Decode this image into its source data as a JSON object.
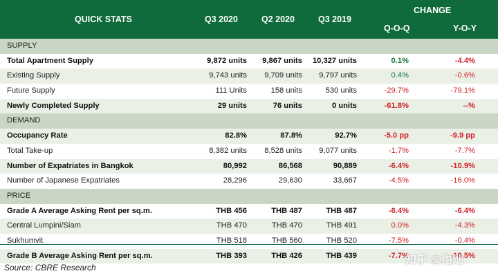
{
  "header": {
    "title": "QUICK STATS",
    "q3_2020": "Q3 2020",
    "q2_2020": "Q2 2020",
    "q3_2019": "Q3 2019",
    "change": "CHANGE",
    "qoq": "Q-O-Q",
    "yoy": "Y-O-Y"
  },
  "rows": [
    {
      "type": "section",
      "label": "SUPPLY"
    },
    {
      "type": "bold",
      "label": "Total Apartment Supply",
      "v1": "9,872 units",
      "v2": "9,867 units",
      "v3": "10,327 units",
      "qoq": "0.1%",
      "yoy": "-4.4%",
      "qs": "pos",
      "ys": "neg"
    },
    {
      "type": "normal",
      "label": "Existing Supply",
      "v1": "9,743 units",
      "v2": "9,709 units",
      "v3": "9,797 units",
      "qoq": "0.4%",
      "yoy": "-0.6%",
      "qs": "pos",
      "ys": "neg"
    },
    {
      "type": "normal",
      "label": "Future Supply",
      "v1": "111 Units",
      "v2": "158 units",
      "v3": "530 units",
      "qoq": "-29.7%",
      "yoy": "-79.1%",
      "qs": "neg",
      "ys": "neg"
    },
    {
      "type": "bold",
      "label": "Newly Completed Supply",
      "v1": "29 units",
      "v2": "76 units",
      "v3": "0 units",
      "qoq": "-61.8%",
      "yoy": "--%",
      "qs": "neg",
      "ys": "neg"
    },
    {
      "type": "section",
      "label": "DEMAND"
    },
    {
      "type": "bold",
      "label": "Occupancy Rate",
      "v1": "82.8%",
      "v2": "87.8%",
      "v3": "92.7%",
      "qoq": "-5.0 pp",
      "yoy": "-9.9 pp",
      "qs": "neg",
      "ys": "neg"
    },
    {
      "type": "normal",
      "label": "Total Take-up",
      "v1": "8,382 units",
      "v2": "8,528 units",
      "v3": "9,077 units",
      "qoq": "-1.7%",
      "yoy": "-7.7%",
      "qs": "neg",
      "ys": "neg"
    },
    {
      "type": "bold",
      "label": "Number of Expatriates in Bangkok",
      "v1": "80,992",
      "v2": "86,568",
      "v3": "90,889",
      "qoq": "-6.4%",
      "yoy": "-10.9%",
      "qs": "neg",
      "ys": "neg"
    },
    {
      "type": "normal",
      "label": "Number of Japanese Expatriates",
      "v1": "28,296",
      "v2": "29,630",
      "v3": "33,667",
      "qoq": "-4.5%",
      "yoy": "-16.0%",
      "qs": "neg",
      "ys": "neg"
    },
    {
      "type": "section",
      "label": "PRICE"
    },
    {
      "type": "bold",
      "label": "Grade A Average Asking Rent per sq.m.",
      "v1": "THB 456",
      "v2": "THB 487",
      "v3": "THB 487",
      "qoq": "-6.4%",
      "yoy": "-6.4%",
      "qs": "neg",
      "ys": "neg"
    },
    {
      "type": "normal",
      "label": "Central Lumpini/Siam",
      "v1": "THB 470",
      "v2": "THB 470",
      "v3": "THB 491",
      "qoq": "0.0%",
      "yoy": "-4.3%",
      "qs": "neg",
      "ys": "neg"
    },
    {
      "type": "normal",
      "label": "Sukhumvit",
      "v1": "THB 518",
      "v2": "THB 560",
      "v3": "THB 520",
      "qoq": "-7.5%",
      "yoy": "-0.4%",
      "qs": "neg",
      "ys": "neg"
    },
    {
      "type": "bold",
      "label": "Grade B Average Asking Rent per sq.m.",
      "v1": "THB 393",
      "v2": "THB 426",
      "v3": "THB 439",
      "qoq": "-7.7%",
      "yoy": "-10.5%",
      "qs": "neg",
      "ys": "neg"
    }
  ],
  "source": "Source: CBRE Research",
  "watermark": "知乎 @绀灿"
}
